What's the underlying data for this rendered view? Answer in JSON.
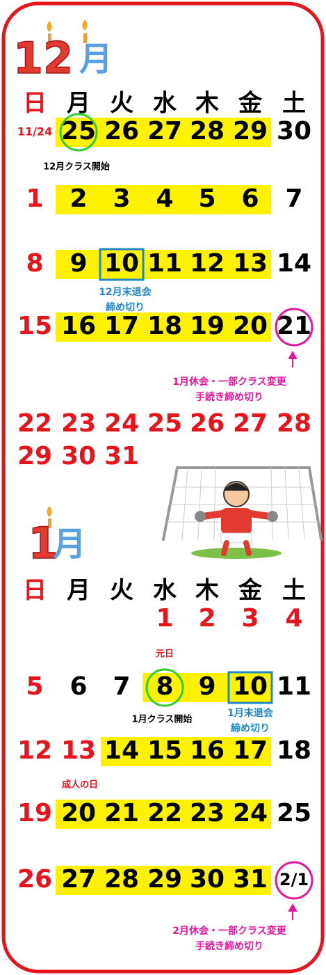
{
  "december": {
    "title_number": "12",
    "title_unit": "月",
    "weekdays": [
      "日",
      "月",
      "火",
      "水",
      "木",
      "金",
      "土"
    ],
    "weeks": [
      [
        "11/24",
        25,
        26,
        27,
        28,
        29,
        30
      ],
      [
        1,
        2,
        3,
        4,
        5,
        6,
        7
      ],
      [
        8,
        9,
        10,
        11,
        12,
        13,
        14
      ],
      [
        15,
        16,
        17,
        18,
        19,
        20,
        21
      ],
      [
        22,
        23,
        24,
        25,
        26,
        27,
        28
      ],
      [
        29,
        30,
        31
      ]
    ],
    "notes": [
      [
        "12月クラス開始"
      ],
      [
        "12月末退会",
        "締め切り"
      ],
      [
        "1月休会・一部クラス変更",
        "手続き締め切り"
      ]
    ]
  },
  "january": {
    "title_number": "1",
    "title_unit": "月",
    "weekdays": [
      "日",
      "月",
      "火",
      "水",
      "木",
      "金",
      "土"
    ],
    "weeks": [
      [
        null,
        null,
        null,
        1,
        2,
        3,
        4
      ],
      [
        5,
        6,
        7,
        8,
        9,
        10,
        11
      ],
      [
        12,
        13,
        14,
        15,
        16,
        17,
        18
      ],
      [
        19,
        20,
        21,
        22,
        23,
        24,
        25
      ],
      [
        26,
        27,
        28,
        29,
        30,
        31,
        "2/1"
      ]
    ],
    "notes": [
      [
        "元日"
      ],
      [
        "1月クラス開始"
      ],
      [
        "1月末退会",
        "締め切り"
      ],
      [
        "成人の日"
      ],
      [
        "2月休会・一部クラス変更",
        "手続き締め切り"
      ]
    ]
  }
}
